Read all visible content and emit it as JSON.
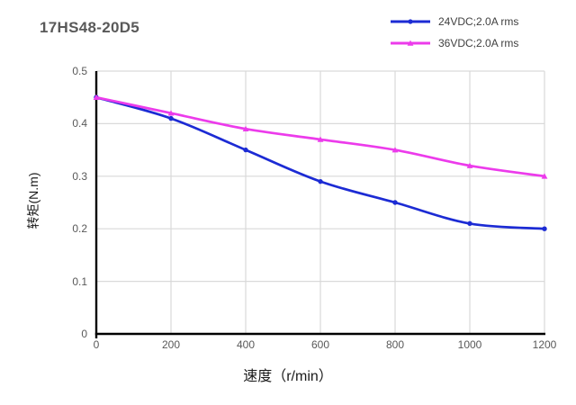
{
  "title": "17HS48-20D5",
  "legend": {
    "position": "top-right",
    "items": [
      {
        "label": "24VDC;2.0A rms",
        "color": "#1C2BD4",
        "marker": "circle"
      },
      {
        "label": "36VDC;2.0A rms",
        "color": "#EC3BEB",
        "marker": "triangle"
      }
    ]
  },
  "chart_data": {
    "type": "line",
    "title": "17HS48-20D5",
    "xlabel": "速度（r/min）",
    "ylabel": "转矩(N.m)",
    "x": [
      0,
      200,
      400,
      600,
      800,
      1000,
      1200
    ],
    "series": [
      {
        "name": "24VDC;2.0A rms",
        "color": "#1C2BD4",
        "marker": "circle",
        "values": [
          0.45,
          0.41,
          0.35,
          0.29,
          0.25,
          0.21,
          0.2
        ]
      },
      {
        "name": "36VDC;2.0A rms",
        "color": "#EC3BEB",
        "marker": "triangle",
        "values": [
          0.45,
          0.42,
          0.39,
          0.37,
          0.35,
          0.32,
          0.3
        ]
      }
    ],
    "xlim": [
      0,
      1200
    ],
    "ylim": [
      0,
      0.5
    ],
    "x_tick_labels": [
      "0",
      "200",
      "400",
      "600",
      "800",
      "1000",
      "1200"
    ],
    "y_tick_labels": [
      "0",
      "0.1",
      "0.2",
      "0.3",
      "0.4",
      "0.5"
    ],
    "grid": true,
    "legend_position": "top-right",
    "colors": {
      "grid": "#D9D9D9",
      "axis": "#000000",
      "tick_text": "#595959",
      "title_text": "#595959",
      "legend_text": "#404040",
      "axis_label_text": "#1A1A1A",
      "background": "#FFFFFF"
    }
  }
}
